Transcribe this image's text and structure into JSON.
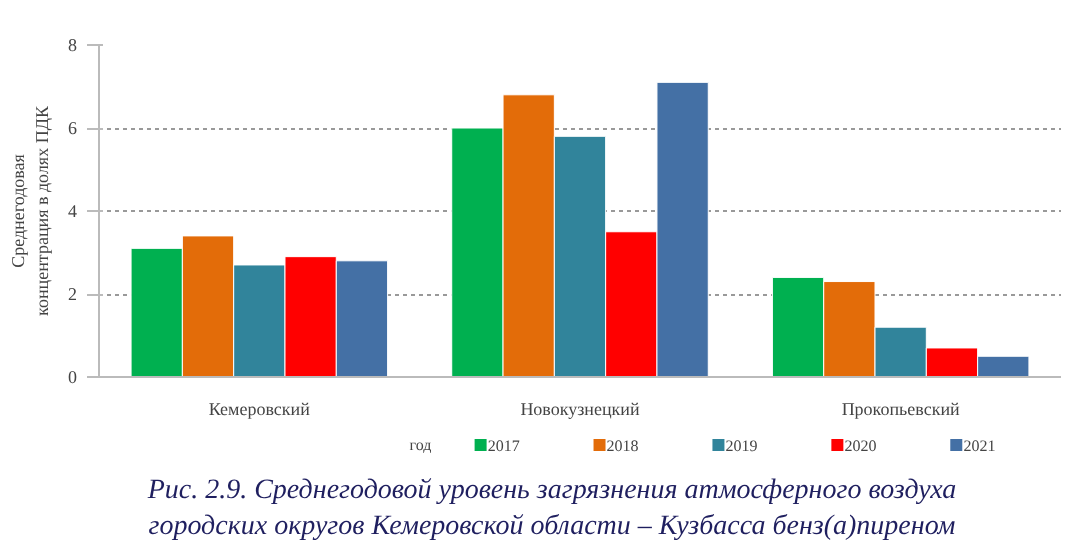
{
  "chart_data": {
    "type": "bar",
    "ylabel": "Среднегодовая\nконцентрация в долях ПДК",
    "legend_title": "год",
    "categories": [
      "Кемеровский",
      "Новокузнецкий",
      "Прокопьевский"
    ],
    "series": [
      {
        "name": "2017",
        "color": "#00b050",
        "values": [
          3.1,
          6.0,
          2.4
        ]
      },
      {
        "name": "2018",
        "color": "#e36c09",
        "values": [
          3.4,
          6.8,
          2.3
        ]
      },
      {
        "name": "2019",
        "color": "#31849b",
        "values": [
          2.7,
          5.8,
          1.2
        ]
      },
      {
        "name": "2020",
        "color": "#ff0000",
        "values": [
          2.9,
          3.5,
          0.7
        ]
      },
      {
        "name": "2021",
        "color": "#4470a5",
        "values": [
          2.8,
          7.1,
          0.5
        ]
      }
    ],
    "ylim": [
      0,
      8
    ],
    "yticks": [
      0,
      2,
      4,
      6,
      8
    ],
    "grid": "y",
    "legend": "bottom",
    "annotations": [
      "Рис. 2.9. Среднегодовой уровень загрязнения атмосферного воздуха\nгородских округов Кемеровской области – Кузбасса бенз(а)пиреном"
    ]
  }
}
